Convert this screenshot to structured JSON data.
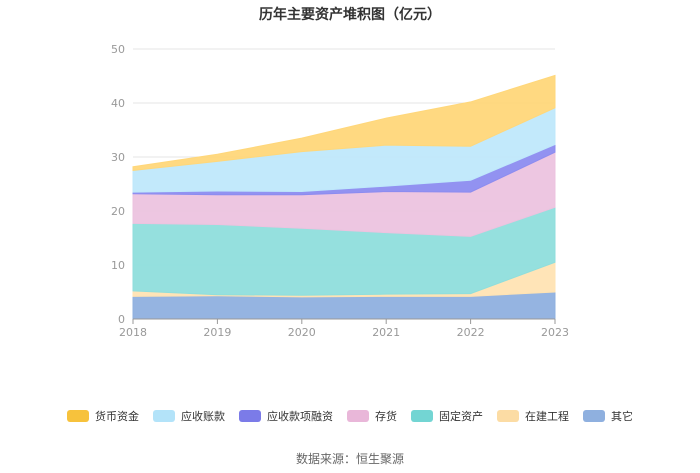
{
  "chart_data": {
    "type": "area",
    "stacked": true,
    "title": "历年主要资产堆积图（亿元）",
    "categories": [
      "2018",
      "2019",
      "2020",
      "2021",
      "2022",
      "2023"
    ],
    "ylim": [
      0,
      50
    ],
    "yticks": [
      0,
      10,
      20,
      30,
      40,
      50
    ],
    "series": [
      {
        "name": "其它",
        "color": "#8fb0df",
        "values": [
          4.2,
          4.3,
          4.1,
          4.2,
          4.2,
          5.0
        ]
      },
      {
        "name": "在建工程",
        "color": "#ffe3b3",
        "values": [
          1.0,
          0.2,
          0.3,
          0.4,
          0.5,
          5.5
        ]
      },
      {
        "name": "固定资产",
        "color": "#8fdedc",
        "values": [
          12.5,
          13.0,
          12.4,
          11.4,
          10.6,
          10.2
        ]
      },
      {
        "name": "存货",
        "color": "#ecc3df",
        "values": [
          5.5,
          5.5,
          6.2,
          7.6,
          8.2,
          10.2
        ]
      },
      {
        "name": "应收款项融资",
        "color": "#8c8cf0",
        "values": [
          0.3,
          0.7,
          0.6,
          1.0,
          2.2,
          1.4
        ]
      },
      {
        "name": "应收账款",
        "color": "#bfe8fb",
        "values": [
          4.0,
          5.5,
          7.4,
          7.6,
          6.3,
          6.8
        ]
      },
      {
        "name": "货币资金",
        "color": "#ffd77a",
        "values": [
          0.7,
          1.3,
          2.5,
          5.0,
          8.2,
          6.0
        ]
      }
    ]
  },
  "legend_order": [
    "货币资金",
    "应收账款",
    "应收款项融资",
    "存货",
    "固定资产",
    "在建工程",
    "其它"
  ],
  "legend_colors": [
    "#f7c23c",
    "#b3e3f9",
    "#7b7be8",
    "#e9b7d9",
    "#73d5d3",
    "#fcdca4",
    "#8fb0df"
  ],
  "source": "数据来源：恒生聚源"
}
